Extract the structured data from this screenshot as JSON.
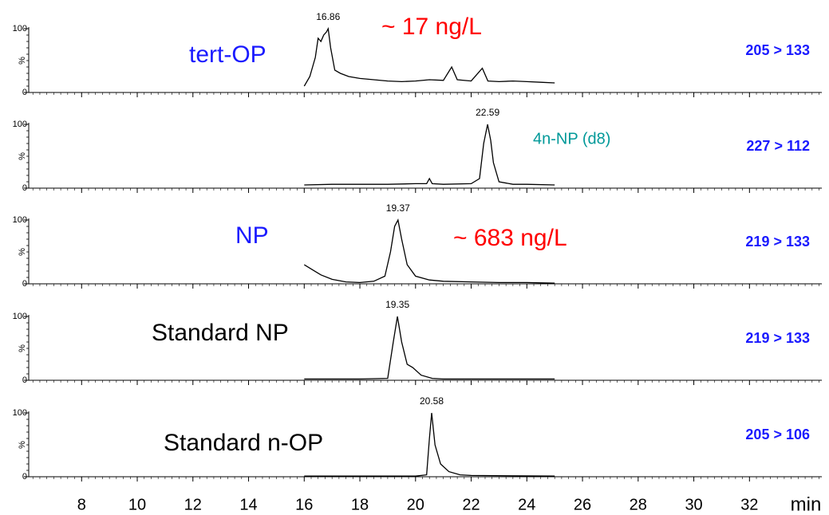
{
  "chart_data": [
    {
      "type": "line",
      "label": "tert-OP",
      "label_color": "#1a1aff",
      "annotation": "~ 17 ng/L",
      "annotation_color": "#ff0000",
      "transition": "205 > 133",
      "peak_rt": 16.86,
      "y_label": "%",
      "x": [
        16.0,
        16.2,
        16.4,
        16.5,
        16.6,
        16.7,
        16.8,
        16.86,
        16.95,
        17.1,
        17.3,
        17.6,
        18,
        18.5,
        19,
        19.5,
        20,
        20.5,
        21,
        21.3,
        21.5,
        22,
        22.4,
        22.6,
        23,
        23.5,
        24,
        24.5,
        25
      ],
      "values": [
        10,
        25,
        55,
        85,
        80,
        90,
        95,
        100,
        70,
        35,
        30,
        25,
        22,
        20,
        18,
        17,
        18,
        20,
        19,
        40,
        20,
        18,
        38,
        18,
        17,
        18,
        17,
        16,
        15
      ],
      "color": "#000000",
      "xlim": [
        6.1,
        34.6
      ],
      "ylim": [
        0,
        100
      ],
      "yticks": [
        0,
        100
      ]
    },
    {
      "type": "line",
      "label": "4n-NP (d8)",
      "label_color": "#009999",
      "transition": "227 > 112",
      "peak_rt": 22.59,
      "y_label": "%",
      "x": [
        16,
        17,
        18,
        19,
        20,
        20.4,
        20.5,
        20.6,
        21,
        22,
        22.3,
        22.45,
        22.59,
        22.7,
        22.8,
        23,
        23.5,
        24,
        25
      ],
      "values": [
        5,
        6,
        6,
        6,
        7,
        7,
        15,
        7,
        6,
        7,
        15,
        70,
        100,
        75,
        40,
        10,
        6,
        6,
        5
      ],
      "color": "#000000",
      "xlim": [
        6.1,
        34.6
      ],
      "ylim": [
        0,
        100
      ],
      "yticks": [
        0,
        100
      ]
    },
    {
      "type": "line",
      "label": "NP",
      "label_color": "#1a1aff",
      "annotation": "~ 683 ng/L",
      "annotation_color": "#ff0000",
      "transition": "219 > 133",
      "peak_rt": 19.37,
      "y_label": "%",
      "x": [
        16,
        16.3,
        16.6,
        17,
        17.5,
        18,
        18.5,
        18.9,
        19.1,
        19.25,
        19.37,
        19.5,
        19.7,
        20,
        20.5,
        21,
        22,
        23,
        24,
        25
      ],
      "values": [
        30,
        22,
        14,
        7,
        3,
        2,
        4,
        12,
        50,
        90,
        100,
        70,
        30,
        12,
        6,
        4,
        3,
        2,
        2,
        1
      ],
      "color": "#000000",
      "xlim": [
        6.1,
        34.6
      ],
      "ylim": [
        0,
        100
      ],
      "yticks": [
        0,
        100
      ]
    },
    {
      "type": "line",
      "label": "Standard NP",
      "label_color": "#000000",
      "transition": "219 > 133",
      "peak_rt": 19.35,
      "y_label": "%",
      "x": [
        16,
        18,
        19,
        19.2,
        19.35,
        19.5,
        19.7,
        19.9,
        20.2,
        20.6,
        21,
        23,
        25
      ],
      "values": [
        2,
        2,
        3,
        60,
        100,
        60,
        25,
        20,
        8,
        3,
        2,
        2,
        2
      ],
      "color": "#000000",
      "xlim": [
        6.1,
        34.6
      ],
      "ylim": [
        0,
        100
      ],
      "yticks": [
        0,
        100
      ]
    },
    {
      "type": "line",
      "label": "Standard n-OP",
      "label_color": "#000000",
      "transition": "205 > 106",
      "peak_rt": 20.58,
      "y_label": "%",
      "x": [
        16,
        18,
        20,
        20.4,
        20.5,
        20.58,
        20.7,
        20.9,
        21.2,
        21.6,
        22,
        25
      ],
      "values": [
        1,
        1,
        1,
        3,
        60,
        100,
        50,
        20,
        8,
        3,
        2,
        1
      ],
      "color": "#000000",
      "xlim": [
        6.1,
        34.6
      ],
      "ylim": [
        0,
        100
      ],
      "yticks": [
        0,
        100
      ],
      "xticks": [
        8,
        10,
        12,
        14,
        16,
        18,
        20,
        22,
        24,
        26,
        28,
        30,
        32
      ],
      "x_label": "min"
    }
  ]
}
